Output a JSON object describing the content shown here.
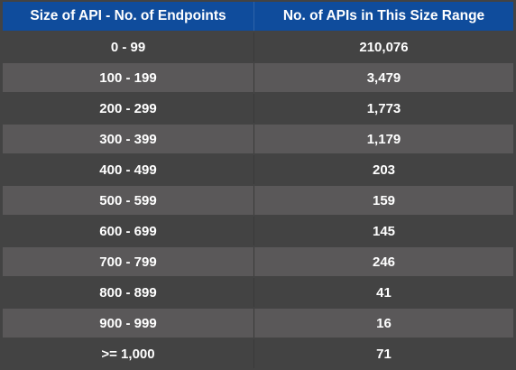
{
  "chart_data": {
    "type": "table",
    "columns": [
      "Size of API - No. of Endpoints",
      "No. of APIs in This Size Range"
    ],
    "rows": [
      [
        "0 - 99",
        "210,076"
      ],
      [
        "100 - 199",
        "3,479"
      ],
      [
        "200 - 299",
        "1,773"
      ],
      [
        "300 - 399",
        "1,179"
      ],
      [
        "400 - 499",
        "203"
      ],
      [
        "500 - 599",
        "159"
      ],
      [
        "600 - 699",
        "145"
      ],
      [
        "700 - 799",
        "246"
      ],
      [
        "800 - 899",
        "41"
      ],
      [
        "900 - 999",
        "16"
      ],
      [
        ">= 1,000",
        "71"
      ]
    ]
  },
  "colors": {
    "header_bg": "#0f4c9c",
    "row_dark": "#434343",
    "row_light": "#5a5859",
    "text": "#ffffff"
  }
}
